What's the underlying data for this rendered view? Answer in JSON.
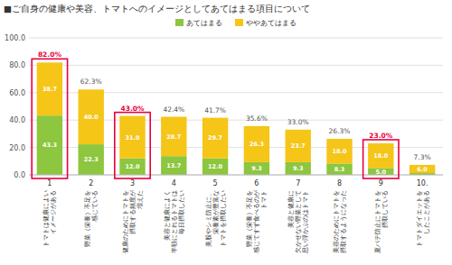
{
  "chart_data": {
    "type": "bar",
    "stacked": true,
    "title": "■ご自身の健康や美容、トマトへのイメージとしてあてはまる項目について",
    "categories": [
      "1",
      "2",
      "3",
      "4",
      "5",
      "6",
      "7",
      "8",
      "9",
      "10."
    ],
    "category_labels": [
      "トマトは健康によい\nイメージがある",
      "野菜（栄養）不足を\n感じている",
      "健康のためにトマトを\n摂取する頻度が\n増えた",
      "美容と健康によく\n半額にとれるトマトは\n毎日摂取したい",
      "美股やシミ防止に、\n栄養素が豊富な\nトマトを摂取したい",
      "野菜（栄養）不足を\n感じてすず食べるのが\nトマト",
      "美容と健康に\n欠かせない野菜として\n思い浮かぶのはトマト",
      "美容のためにトマトを\n摂取するようになった",
      "夏バテ防止にトマトを\n摂取している",
      "トマトダイエットを\nしたことがある"
    ],
    "series": [
      {
        "name": "あてはまる",
        "color": "#8dc63f",
        "values": [
          43.3,
          22.3,
          12.0,
          13.7,
          12.0,
          9.3,
          9.3,
          8.3,
          5.0,
          1.3
        ],
        "value_labels": [
          "43.3",
          "22.3",
          "12.0",
          "13.7",
          "12.0",
          "9.3",
          "9.3",
          "8.3",
          "5.0",
          null
        ]
      },
      {
        "name": "ややあてはまる",
        "color": "#f5c518",
        "values": [
          38.7,
          40.0,
          31.0,
          28.7,
          29.7,
          26.3,
          23.7,
          18.0,
          18.0,
          6.0
        ],
        "value_labels": [
          "38.7",
          "40.0",
          "31.0",
          "28.7",
          "29.7",
          "26.3",
          "23.7",
          "18.0",
          "18.0",
          "6.0"
        ]
      }
    ],
    "totals": {
      "values": [
        82.0,
        62.3,
        43.0,
        42.4,
        41.7,
        35.6,
        33.0,
        26.3,
        23.0,
        7.3
      ],
      "value_labels": [
        "82.0%",
        "62.3%",
        "43.0%",
        "42.4%",
        "41.7%",
        "35.6%",
        "33.0%",
        "26.3%",
        "23.0%",
        "7.3%"
      ]
    },
    "highlighted": [
      true,
      false,
      true,
      false,
      false,
      false,
      false,
      false,
      true,
      false
    ],
    "highlight_color": "#e8003d",
    "data_labels": true,
    "ylim": [
      0,
      100
    ],
    "yticks": [
      {
        "value": 0,
        "label": "0.0"
      },
      {
        "value": 20,
        "label": "20.0"
      },
      {
        "value": 40,
        "label": "40.0"
      },
      {
        "value": 60,
        "label": "60.0"
      },
      {
        "value": 80,
        "label": "80.0"
      },
      {
        "value": 100,
        "label": "100.0"
      }
    ],
    "grid": true,
    "legend": "top"
  }
}
